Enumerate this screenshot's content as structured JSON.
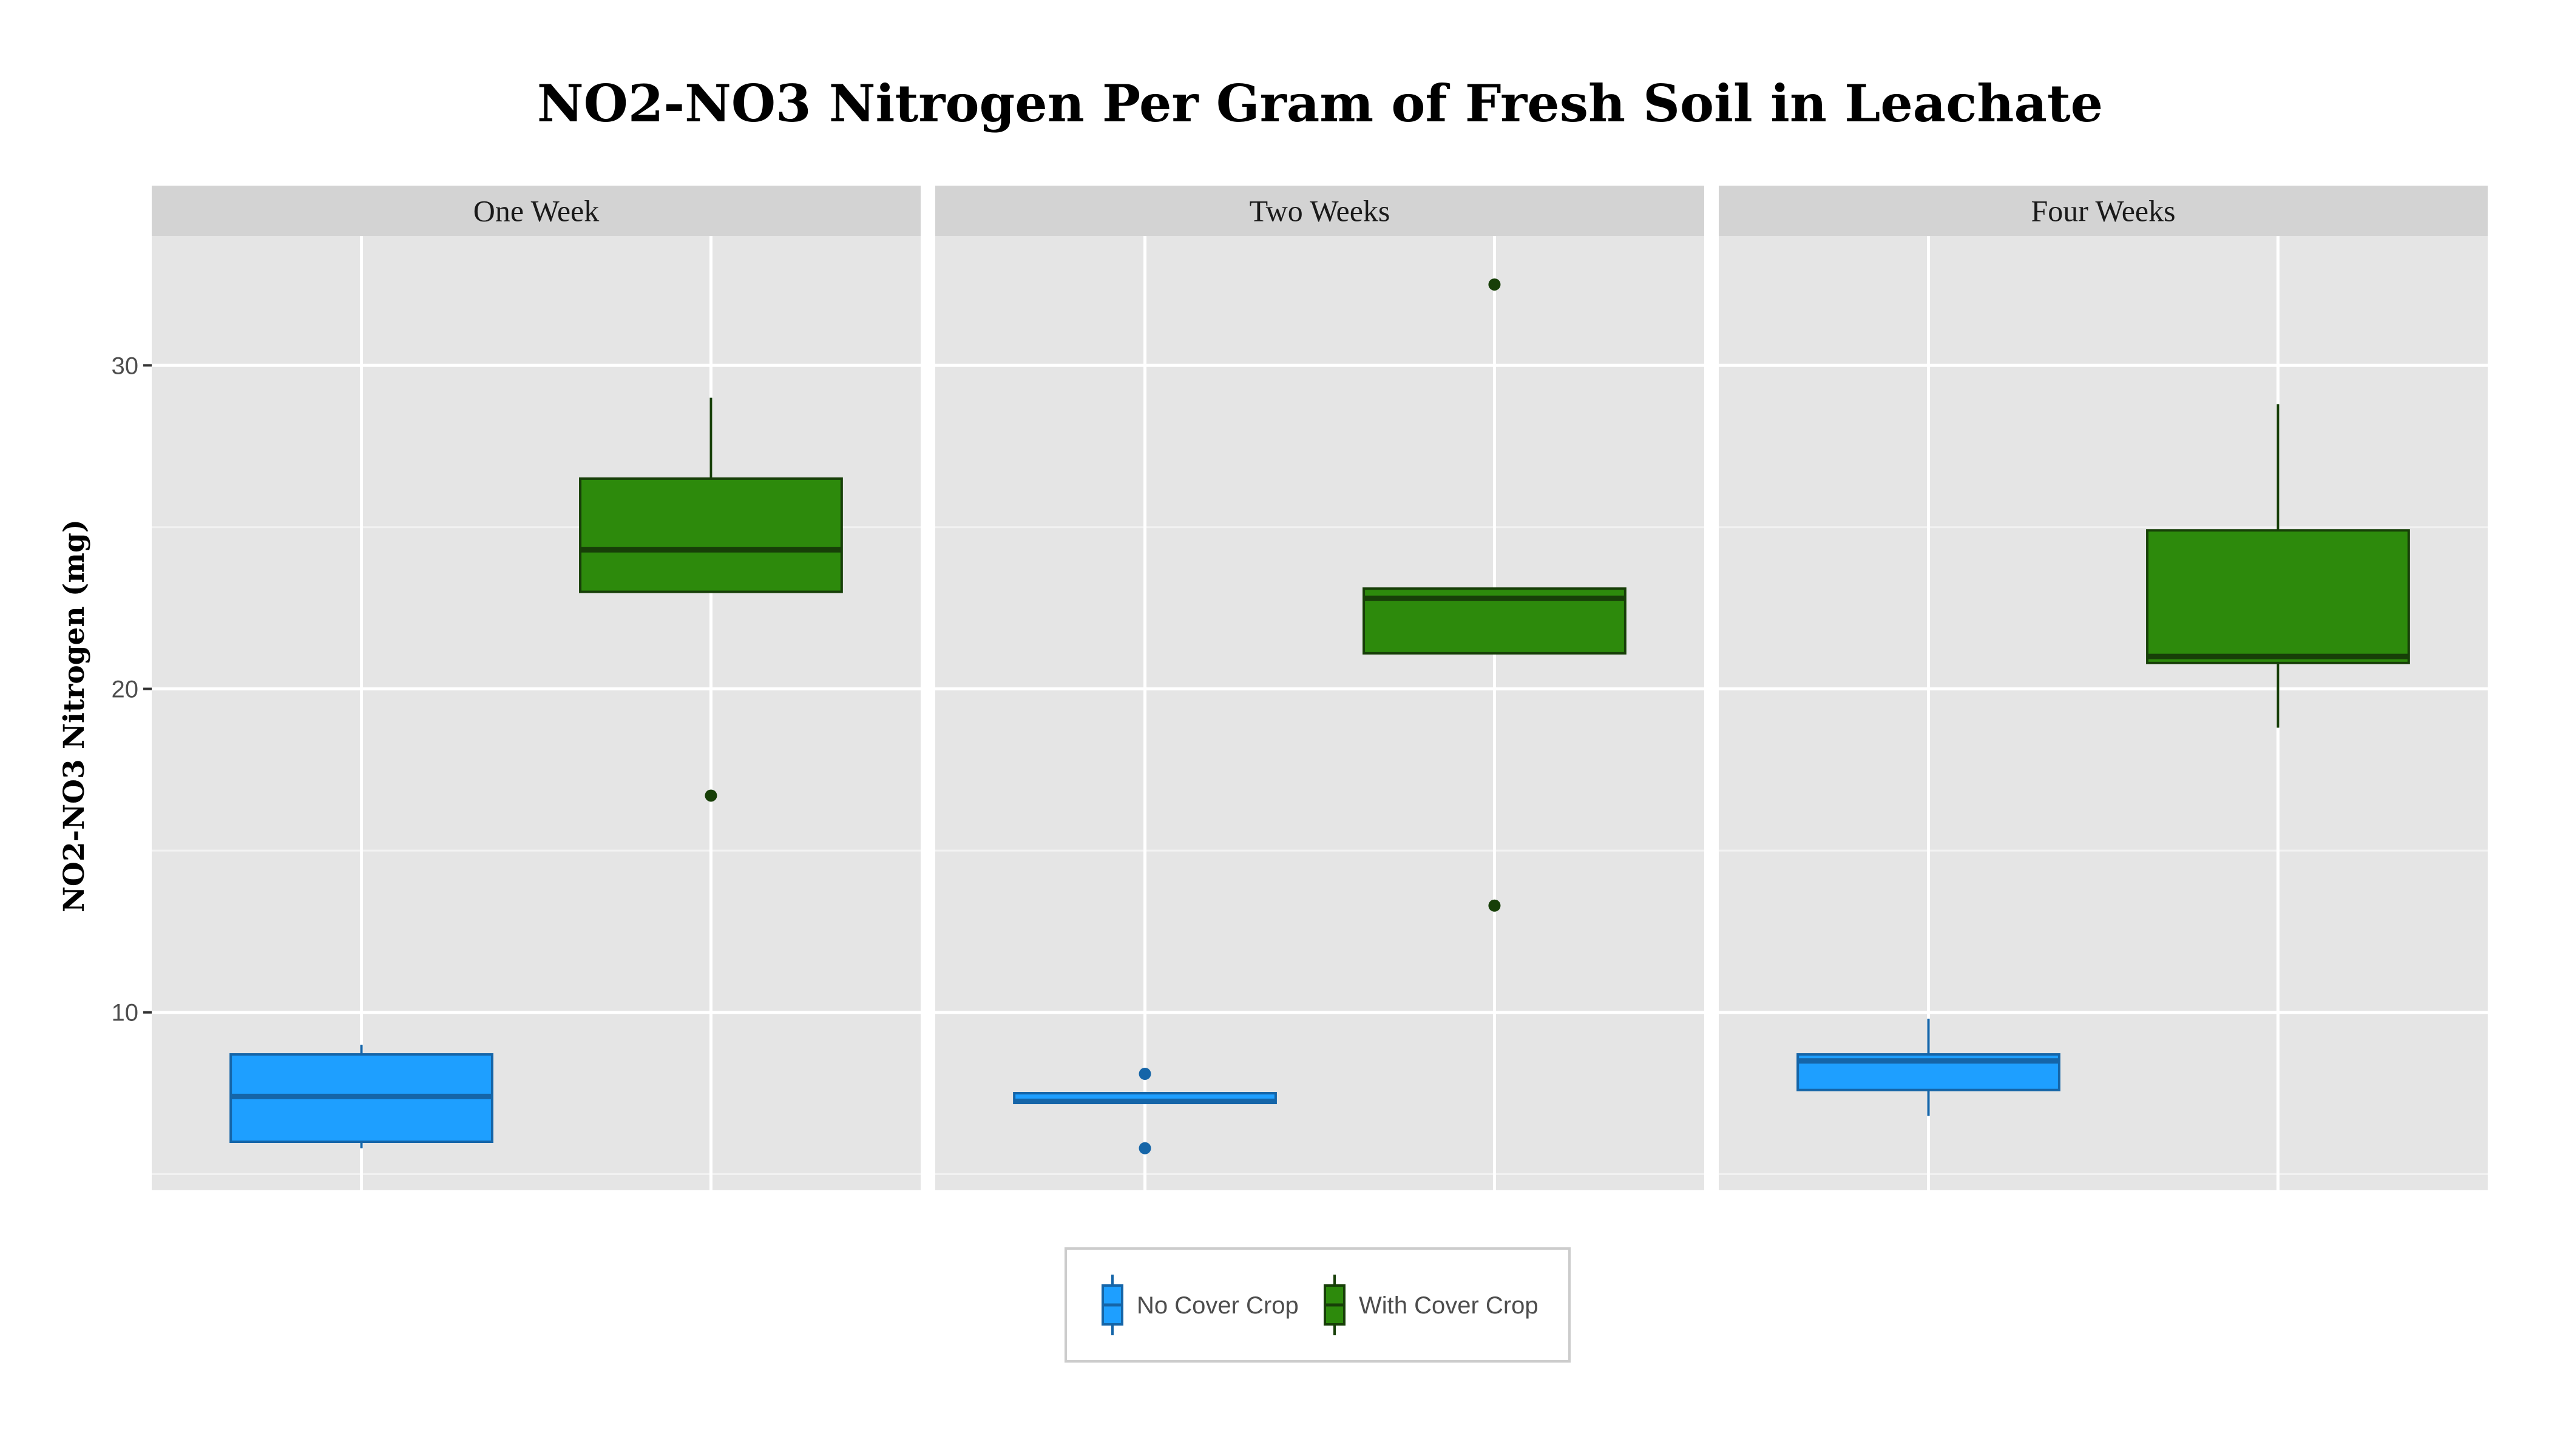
{
  "chart_data": {
    "type": "boxplot",
    "title": "NO2-NO3 Nitrogen Per Gram of Fresh Soil in Leachate",
    "xlabel": "",
    "ylabel": "NO2-NO3 Nitrogen (mg)",
    "ylim": [
      4.5,
      34
    ],
    "y_ticks": [
      10,
      20,
      30
    ],
    "grid": true,
    "legend_position": "bottom",
    "panels": [
      "One Week",
      "Two Weeks",
      "Four Weeks"
    ],
    "series": [
      {
        "name": "No Cover Crop",
        "color": "#1E9FFF",
        "edge_color": "#1565A8",
        "boxes": [
          {
            "panel": "One Week",
            "whisker_low": 5.8,
            "q1": 6.0,
            "median": 7.4,
            "q3": 8.7,
            "whisker_high": 9.0,
            "outliers": []
          },
          {
            "panel": "Two Weeks",
            "whisker_low": 7.2,
            "q1": 7.2,
            "median": 7.25,
            "q3": 7.5,
            "whisker_high": 7.5,
            "outliers": [
              8.1,
              5.8
            ]
          },
          {
            "panel": "Four Weeks",
            "whisker_low": 6.8,
            "q1": 7.6,
            "median": 8.5,
            "q3": 8.7,
            "whisker_high": 9.8,
            "outliers": []
          }
        ]
      },
      {
        "name": "With Cover Crop",
        "color": "#2D8A0C",
        "edge_color": "#173F08",
        "boxes": [
          {
            "panel": "One Week",
            "whisker_low": 23.0,
            "q1": 23.0,
            "median": 24.3,
            "q3": 26.5,
            "whisker_high": 29.0,
            "outliers": [
              16.7
            ]
          },
          {
            "panel": "Two Weeks",
            "whisker_low": 21.1,
            "q1": 21.1,
            "median": 22.8,
            "q3": 23.1,
            "whisker_high": 23.1,
            "outliers": [
              32.5,
              13.3
            ]
          },
          {
            "panel": "Four Weeks",
            "whisker_low": 18.8,
            "q1": 20.8,
            "median": 21.0,
            "q3": 24.9,
            "whisker_high": 28.8,
            "outliers": []
          }
        ]
      }
    ]
  }
}
